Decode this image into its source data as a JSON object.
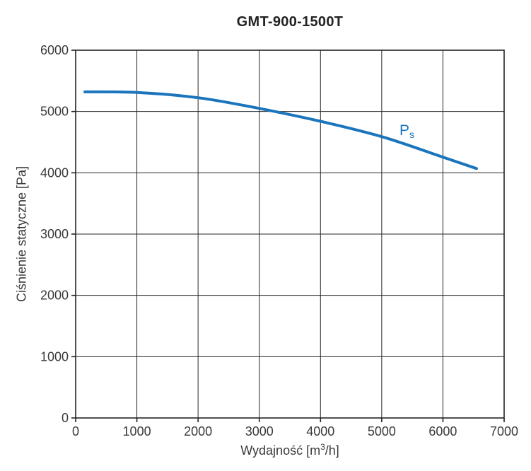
{
  "title": "GMT-900-1500T",
  "labels": {
    "xlabel_prefix": "Wydajność [m",
    "xlabel_sup": "3",
    "xlabel_suffix": "/h]"
  },
  "colors": {
    "background": "#ffffff",
    "text": "#3a3a3c",
    "title_text": "#232325",
    "grid": "#262628",
    "frame": "#232325",
    "curve": "#1b75bc"
  },
  "chart_data": {
    "type": "line",
    "title": "GMT-900-1500T",
    "xlabel": "Wydajność [m³/h]",
    "ylabel": "Ciśnienie statyczne [Pa]",
    "xlim": [
      0,
      7000
    ],
    "ylim": [
      0,
      6000
    ],
    "x_ticks": [
      0,
      1000,
      2000,
      3000,
      4000,
      5000,
      6000,
      7000
    ],
    "y_ticks": [
      0,
      1000,
      2000,
      3000,
      4000,
      5000,
      6000
    ],
    "grid": true,
    "legend_position": "on-curve",
    "series": [
      {
        "name": "Ps",
        "label_main": "P",
        "label_sub": "s",
        "color": "#1b75bc",
        "label_pos": {
          "x": 5290,
          "y": 4615
        },
        "x": [
          150,
          1000,
          2000,
          3000,
          4000,
          5000,
          6000,
          6550
        ],
        "y": [
          5320,
          5310,
          5225,
          5050,
          4840,
          4590,
          4255,
          4070
        ]
      }
    ]
  }
}
